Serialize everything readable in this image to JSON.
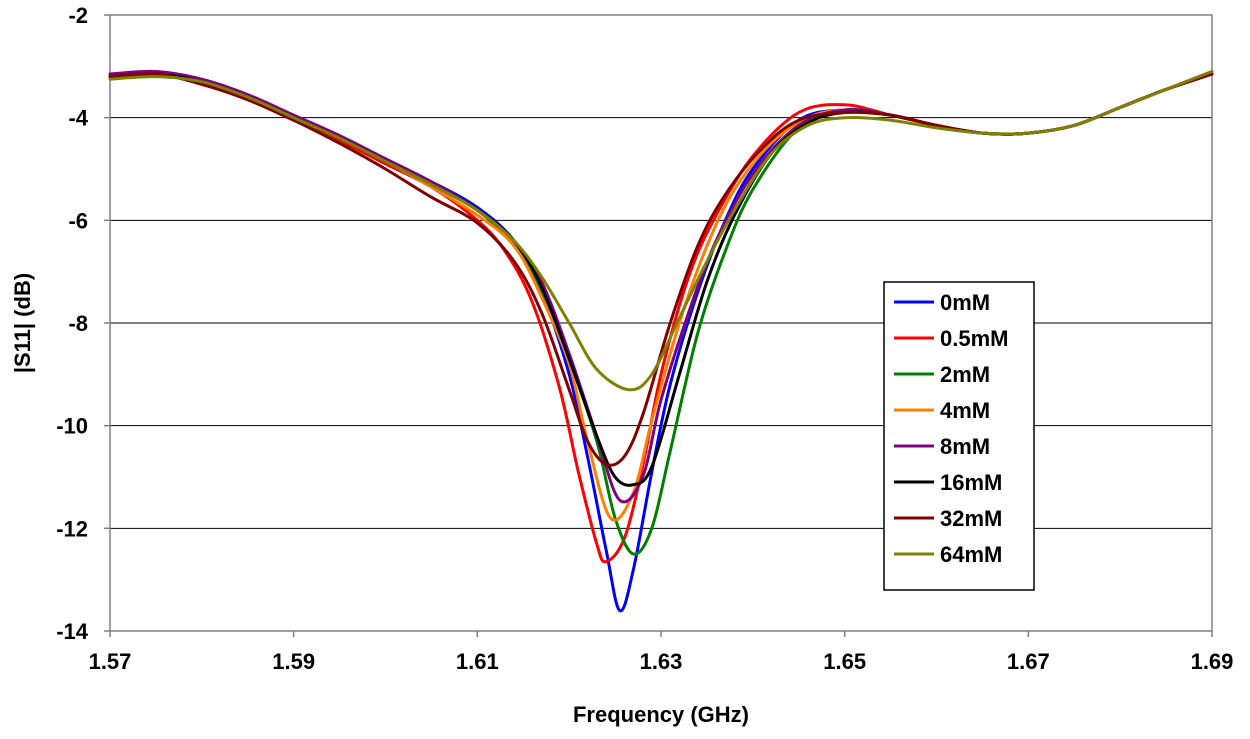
{
  "chart_data": {
    "type": "line",
    "title": "",
    "xlabel": "Frequency (GHz)",
    "ylabel": "|S11| (dB)",
    "xlim": [
      1.57,
      1.69
    ],
    "ylim": [
      -14,
      -2
    ],
    "xticks": [
      "1.57",
      "1.59",
      "1.61",
      "1.63",
      "1.65",
      "1.67",
      "1.69"
    ],
    "yticks": [
      "-2",
      "-4",
      "-6",
      "-8",
      "-10",
      "-12",
      "-14"
    ],
    "grid": "horizontal",
    "legend_position": "center-right",
    "series": [
      {
        "name": "0mM",
        "color": "#0000ff",
        "x": [
          1.57,
          1.575,
          1.58,
          1.585,
          1.59,
          1.595,
          1.6,
          1.605,
          1.61,
          1.614,
          1.617,
          1.62,
          1.622,
          1.624,
          1.6255,
          1.627,
          1.629,
          1.631,
          1.634,
          1.637,
          1.64,
          1.645,
          1.65,
          1.655,
          1.66,
          1.665,
          1.67,
          1.675,
          1.68,
          1.685,
          1.69
        ],
        "y": [
          -3.2,
          -3.15,
          -3.3,
          -3.6,
          -4.0,
          -4.4,
          -4.85,
          -5.25,
          -5.75,
          -6.4,
          -7.4,
          -9.0,
          -10.6,
          -12.4,
          -13.6,
          -12.8,
          -10.9,
          -9.2,
          -7.4,
          -6.0,
          -5.0,
          -4.05,
          -3.85,
          -3.95,
          -4.15,
          -4.3,
          -4.3,
          -4.15,
          -3.8,
          -3.45,
          -3.15
        ]
      },
      {
        "name": "0.5mM",
        "color": "#ff0000",
        "x": [
          1.57,
          1.575,
          1.58,
          1.585,
          1.59,
          1.595,
          1.6,
          1.605,
          1.61,
          1.613,
          1.616,
          1.619,
          1.621,
          1.623,
          1.624,
          1.626,
          1.628,
          1.63,
          1.633,
          1.636,
          1.64,
          1.645,
          1.65,
          1.655,
          1.66,
          1.665,
          1.67,
          1.675,
          1.68,
          1.685,
          1.69
        ],
        "y": [
          -3.2,
          -3.15,
          -3.35,
          -3.65,
          -4.05,
          -4.45,
          -4.9,
          -5.35,
          -6.0,
          -6.6,
          -7.6,
          -9.3,
          -10.9,
          -12.3,
          -12.65,
          -12.2,
          -10.8,
          -9.0,
          -7.1,
          -5.9,
          -4.75,
          -3.9,
          -3.75,
          -3.95,
          -4.15,
          -4.3,
          -4.3,
          -4.15,
          -3.8,
          -3.45,
          -3.1
        ]
      },
      {
        "name": "2mM",
        "color": "#008000",
        "x": [
          1.57,
          1.575,
          1.58,
          1.585,
          1.59,
          1.595,
          1.6,
          1.605,
          1.61,
          1.614,
          1.617,
          1.62,
          1.623,
          1.625,
          1.627,
          1.629,
          1.631,
          1.634,
          1.637,
          1.64,
          1.645,
          1.65,
          1.655,
          1.66,
          1.665,
          1.67,
          1.675,
          1.68,
          1.685,
          1.69
        ],
        "y": [
          -3.2,
          -3.15,
          -3.3,
          -3.6,
          -4.0,
          -4.4,
          -4.85,
          -5.3,
          -5.8,
          -6.5,
          -7.4,
          -8.7,
          -10.3,
          -11.8,
          -12.5,
          -12.0,
          -10.5,
          -8.2,
          -6.6,
          -5.4,
          -4.2,
          -3.85,
          -3.95,
          -4.15,
          -4.3,
          -4.3,
          -4.15,
          -3.8,
          -3.45,
          -3.15
        ]
      },
      {
        "name": "4mM",
        "color": "#ff8000",
        "x": [
          1.57,
          1.575,
          1.58,
          1.585,
          1.59,
          1.595,
          1.6,
          1.605,
          1.61,
          1.614,
          1.617,
          1.62,
          1.622,
          1.6245,
          1.627,
          1.629,
          1.632,
          1.635,
          1.638,
          1.642,
          1.646,
          1.65,
          1.655,
          1.66,
          1.665,
          1.67,
          1.675,
          1.68,
          1.685,
          1.69
        ],
        "y": [
          -3.2,
          -3.15,
          -3.3,
          -3.6,
          -4.0,
          -4.4,
          -4.85,
          -5.35,
          -5.9,
          -6.5,
          -7.5,
          -8.8,
          -10.3,
          -11.8,
          -11.3,
          -9.9,
          -8.0,
          -6.5,
          -5.4,
          -4.5,
          -4.0,
          -3.85,
          -3.95,
          -4.15,
          -4.3,
          -4.3,
          -4.15,
          -3.8,
          -3.45,
          -3.15
        ]
      },
      {
        "name": "8mM",
        "color": "#800080",
        "x": [
          1.57,
          1.575,
          1.58,
          1.585,
          1.59,
          1.595,
          1.6,
          1.605,
          1.61,
          1.614,
          1.617,
          1.62,
          1.623,
          1.6255,
          1.628,
          1.63,
          1.633,
          1.636,
          1.64,
          1.645,
          1.65,
          1.655,
          1.66,
          1.665,
          1.67,
          1.675,
          1.68,
          1.685,
          1.69
        ],
        "y": [
          -3.15,
          -3.1,
          -3.25,
          -3.55,
          -3.95,
          -4.35,
          -4.8,
          -5.25,
          -5.8,
          -6.4,
          -7.2,
          -8.6,
          -10.2,
          -11.45,
          -11.0,
          -9.5,
          -7.8,
          -6.4,
          -5.1,
          -4.15,
          -3.85,
          -3.95,
          -4.15,
          -4.3,
          -4.3,
          -4.15,
          -3.8,
          -3.45,
          -3.15
        ]
      },
      {
        "name": "16mM",
        "color": "#000000",
        "x": [
          1.57,
          1.575,
          1.58,
          1.585,
          1.59,
          1.595,
          1.6,
          1.605,
          1.61,
          1.614,
          1.617,
          1.62,
          1.623,
          1.625,
          1.627,
          1.629,
          1.632,
          1.635,
          1.638,
          1.642,
          1.646,
          1.65,
          1.655,
          1.66,
          1.665,
          1.67,
          1.675,
          1.68,
          1.685,
          1.69
        ],
        "y": [
          -3.2,
          -3.15,
          -3.3,
          -3.6,
          -4.0,
          -4.4,
          -4.85,
          -5.3,
          -5.8,
          -6.4,
          -7.3,
          -8.7,
          -10.2,
          -11.0,
          -11.15,
          -10.8,
          -9.0,
          -7.2,
          -5.9,
          -4.7,
          -4.1,
          -3.9,
          -3.95,
          -4.15,
          -4.3,
          -4.3,
          -4.15,
          -3.8,
          -3.45,
          -3.15
        ]
      },
      {
        "name": "32mM",
        "color": "#800000",
        "x": [
          1.57,
          1.575,
          1.58,
          1.585,
          1.59,
          1.595,
          1.6,
          1.605,
          1.61,
          1.614,
          1.617,
          1.62,
          1.622,
          1.624,
          1.626,
          1.628,
          1.631,
          1.634,
          1.637,
          1.641,
          1.645,
          1.65,
          1.655,
          1.66,
          1.665,
          1.67,
          1.675,
          1.68,
          1.685,
          1.69
        ],
        "y": [
          -3.2,
          -3.15,
          -3.35,
          -3.65,
          -4.05,
          -4.5,
          -5.0,
          -5.55,
          -6.05,
          -6.8,
          -7.8,
          -9.3,
          -10.3,
          -10.75,
          -10.6,
          -9.8,
          -8.0,
          -6.5,
          -5.5,
          -4.6,
          -4.05,
          -3.9,
          -3.95,
          -4.15,
          -4.3,
          -4.3,
          -4.15,
          -3.8,
          -3.45,
          -3.15
        ]
      },
      {
        "name": "64mM",
        "color": "#808000",
        "x": [
          1.57,
          1.575,
          1.58,
          1.585,
          1.59,
          1.595,
          1.6,
          1.605,
          1.61,
          1.614,
          1.617,
          1.62,
          1.623,
          1.6265,
          1.629,
          1.632,
          1.635,
          1.638,
          1.642,
          1.646,
          1.65,
          1.655,
          1.66,
          1.665,
          1.67,
          1.675,
          1.68,
          1.685,
          1.69
        ],
        "y": [
          -3.25,
          -3.2,
          -3.3,
          -3.6,
          -4.0,
          -4.4,
          -4.85,
          -5.3,
          -5.8,
          -6.4,
          -7.1,
          -8.0,
          -8.9,
          -9.3,
          -9.0,
          -7.9,
          -6.8,
          -5.8,
          -4.7,
          -4.15,
          -4.0,
          -4.05,
          -4.2,
          -4.3,
          -4.3,
          -4.15,
          -3.8,
          -3.45,
          -3.1
        ]
      }
    ]
  }
}
